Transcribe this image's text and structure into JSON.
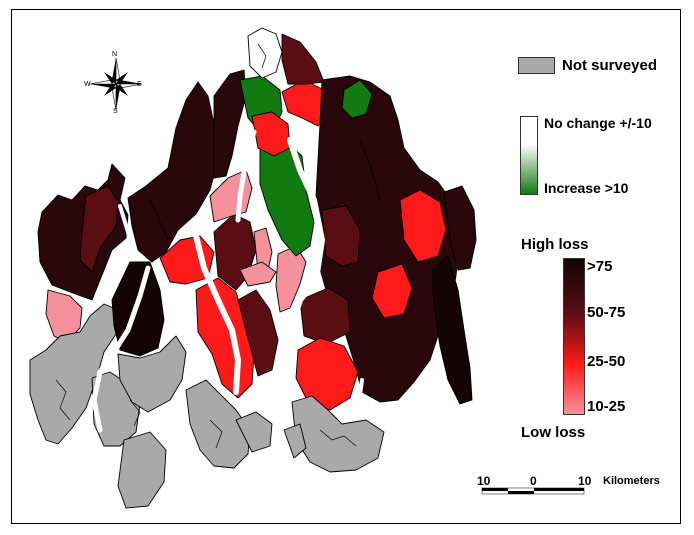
{
  "legend": {
    "not_surveyed": {
      "label": "Not surveyed",
      "color": "#a9a9a9"
    },
    "gain": {
      "top_label": "No change +/-10",
      "bottom_label": "Increase >10",
      "colors": [
        "#ffffff",
        "#117a11"
      ]
    },
    "loss": {
      "title": "High loss",
      "classes": [
        {
          "label": ">75",
          "color": "#140406"
        },
        {
          "label": "50-75",
          "color": "#5a0e12"
        },
        {
          "label": "25-50",
          "color": "#ff1a1a"
        },
        {
          "label": "10-25",
          "color": "#f4919a"
        }
      ],
      "bottom_label": "Low loss"
    }
  },
  "compass": {
    "n": "N",
    "s": "S",
    "e": "E",
    "w": "W"
  },
  "scale_bar": {
    "labels": [
      "10",
      "0",
      "10"
    ],
    "unit": "Kilometers"
  }
}
